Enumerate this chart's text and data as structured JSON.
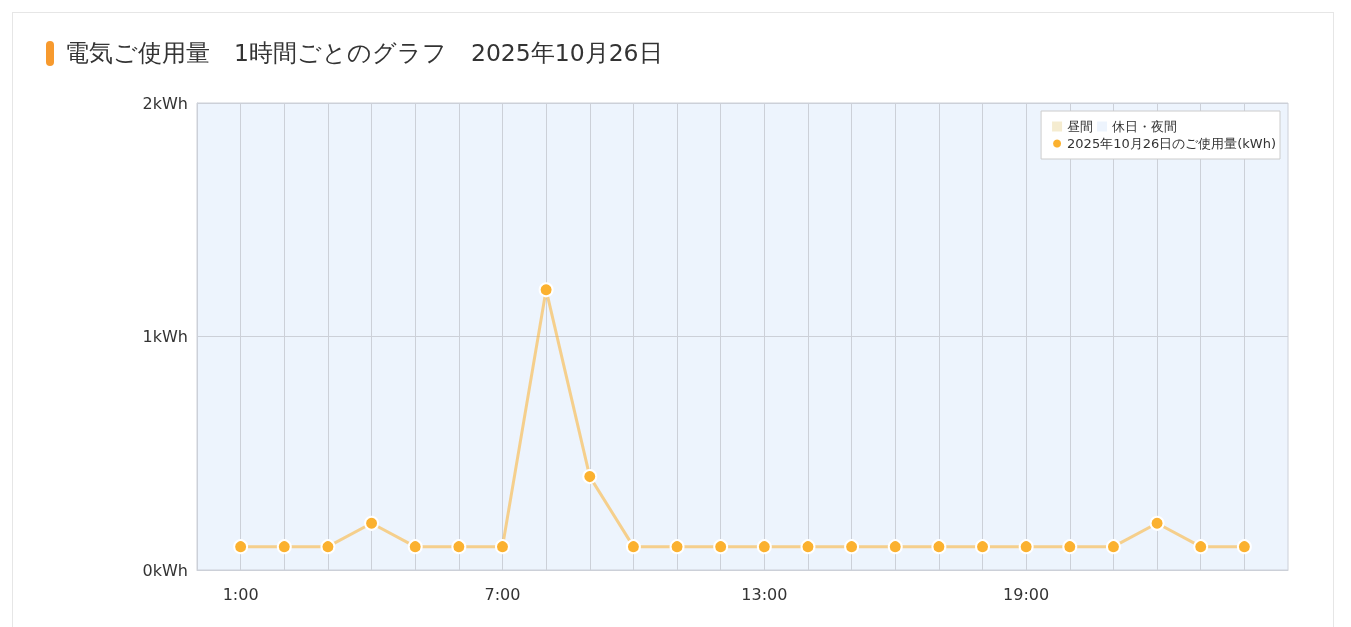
{
  "chart_data": {
    "type": "line",
    "title": "電気ご使用量　1時間ごとのグラフ　2025年10月26日",
    "x": [
      1,
      2,
      3,
      4,
      5,
      6,
      7,
      8,
      9,
      10,
      11,
      12,
      13,
      14,
      15,
      16,
      17,
      18,
      19,
      20,
      21,
      22,
      23,
      24
    ],
    "series": [
      {
        "name": "昼間",
        "type": "bar",
        "color": "#f5ecd0",
        "values": [
          null,
          null,
          null,
          null,
          null,
          null,
          null,
          null,
          null,
          null,
          null,
          null,
          null,
          null,
          null,
          null,
          null,
          null,
          null,
          null,
          null,
          null,
          null,
          null
        ]
      },
      {
        "name": "2025年10月26日のご使用量(kWh)",
        "color": "#fbb12f",
        "values": [
          0.1,
          0.1,
          0.1,
          0.2,
          0.1,
          0.1,
          0.1,
          1.2,
          0.4,
          0.1,
          0.1,
          0.1,
          0.1,
          0.1,
          0.1,
          0.1,
          0.1,
          0.1,
          0.1,
          0.1,
          0.1,
          0.2,
          0.1,
          0.1
        ]
      }
    ],
    "bands": [
      {
        "axis": "x",
        "from": 0,
        "to": 25,
        "label": "休日・夜間",
        "color": "#edf4fd"
      }
    ],
    "xlim": [
      0,
      25
    ],
    "xticks": [
      {
        "value": 1,
        "label": "1:00"
      },
      {
        "value": 2,
        "label": null
      },
      {
        "value": 3,
        "label": null
      },
      {
        "value": 4,
        "label": null
      },
      {
        "value": 5,
        "label": null
      },
      {
        "value": 6,
        "label": null
      },
      {
        "value": 7,
        "label": "7:00"
      },
      {
        "value": 8,
        "label": null
      },
      {
        "value": 9,
        "label": null
      },
      {
        "value": 10,
        "label": null
      },
      {
        "value": 11,
        "label": null
      },
      {
        "value": 12,
        "label": null
      },
      {
        "value": 13,
        "label": "13:00"
      },
      {
        "value": 14,
        "label": null
      },
      {
        "value": 15,
        "label": null
      },
      {
        "value": 16,
        "label": null
      },
      {
        "value": 17,
        "label": null
      },
      {
        "value": 18,
        "label": null
      },
      {
        "value": 19,
        "label": "19:00"
      },
      {
        "value": 20,
        "label": null
      },
      {
        "value": 21,
        "label": null
      },
      {
        "value": 22,
        "label": null
      },
      {
        "value": 23,
        "label": null
      },
      {
        "value": 24,
        "label": null
      }
    ],
    "ylim": [
      0,
      2
    ],
    "yticks": [
      {
        "value": 0,
        "label": "0kWh"
      },
      {
        "value": 1,
        "label": "1kWh"
      },
      {
        "value": 2,
        "label": "2kWh"
      }
    ],
    "grid": true,
    "legend": "top right",
    "marker": "circle"
  }
}
